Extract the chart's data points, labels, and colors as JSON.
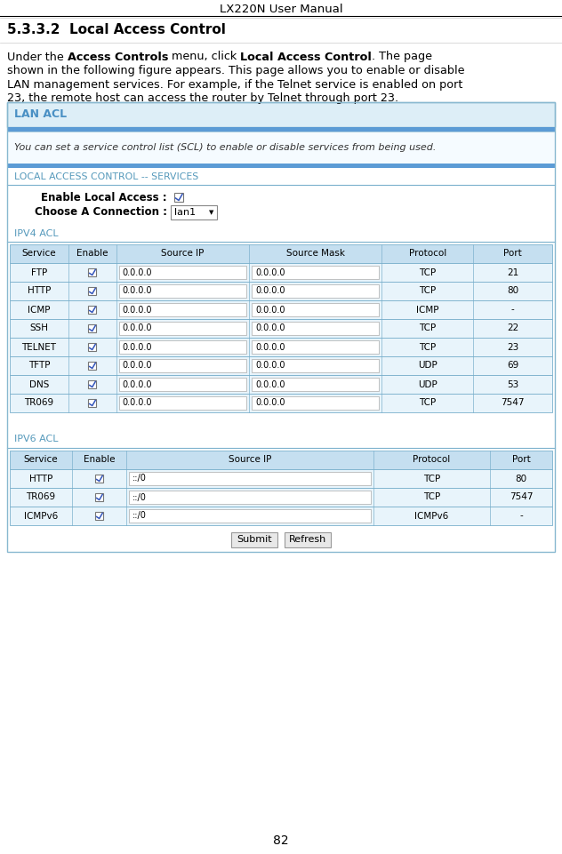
{
  "title": "LX220N User Manual",
  "page_number": "82",
  "section_title": "5.3.3.2  Local Access Control",
  "lan_acl_title": "LAN ACL",
  "lan_acl_desc": "You can set a service control list (SCL) to enable or disable services from being used.",
  "local_services_title": "LOCAL ACCESS CONTROL -- SERVICES",
  "enable_local_label": "Enable Local Access :",
  "choose_connection_label": "Choose A Connection :",
  "choose_connection_value": "lan1",
  "ipv4_acl_title": "IPV4 ACL",
  "ipv4_headers": [
    "Service",
    "Enable",
    "Source IP",
    "Source Mask",
    "Protocol",
    "Port"
  ],
  "ipv4_rows": [
    [
      "FTP",
      "0.0.0.0",
      "0.0.0.0",
      "TCP",
      "21"
    ],
    [
      "HTTP",
      "0.0.0.0",
      "0.0.0.0",
      "TCP",
      "80"
    ],
    [
      "ICMP",
      "0.0.0.0",
      "0.0.0.0",
      "ICMP",
      "-"
    ],
    [
      "SSH",
      "0.0.0.0",
      "0.0.0.0",
      "TCP",
      "22"
    ],
    [
      "TELNET",
      "0.0.0.0",
      "0.0.0.0",
      "TCP",
      "23"
    ],
    [
      "TFTP",
      "0.0.0.0",
      "0.0.0.0",
      "UDP",
      "69"
    ],
    [
      "DNS",
      "0.0.0.0",
      "0.0.0.0",
      "UDP",
      "53"
    ],
    [
      "TR069",
      "0.0.0.0",
      "0.0.0.0",
      "TCP",
      "7547"
    ]
  ],
  "ipv6_acl_title": "IPV6 ACL",
  "ipv6_headers": [
    "Service",
    "Enable",
    "Source IP",
    "Protocol",
    "Port"
  ],
  "ipv6_rows": [
    [
      "HTTP",
      "::/0",
      "TCP",
      "80"
    ],
    [
      "TR069",
      "::/0",
      "TCP",
      "7547"
    ],
    [
      "ICMPv6",
      "::/0",
      "ICMPv6",
      "-"
    ]
  ],
  "body_line2": "shown in the following figure appears. This page allows you to enable or disable",
  "body_line3": "LAN management services. For example, if the Telnet service is enabled on port",
  "body_line4": "23, the remote host can access the router by Telnet through port 23.",
  "colors": {
    "page_bg": "#FFFFFF",
    "section_hdr_bg": "#ddeef7",
    "section_hdr_text": "#4a90c4",
    "blue_bar": "#5b9bd5",
    "table_hdr_bg": "#c5dff0",
    "table_row_bg": "#e8f4fb",
    "table_border": "#7ab0cc",
    "outer_border": "#88b8d0",
    "input_border": "#aaaaaa",
    "blue_label": "#5599bb",
    "btn_bg": "#e8e8e8",
    "btn_border": "#999999"
  }
}
